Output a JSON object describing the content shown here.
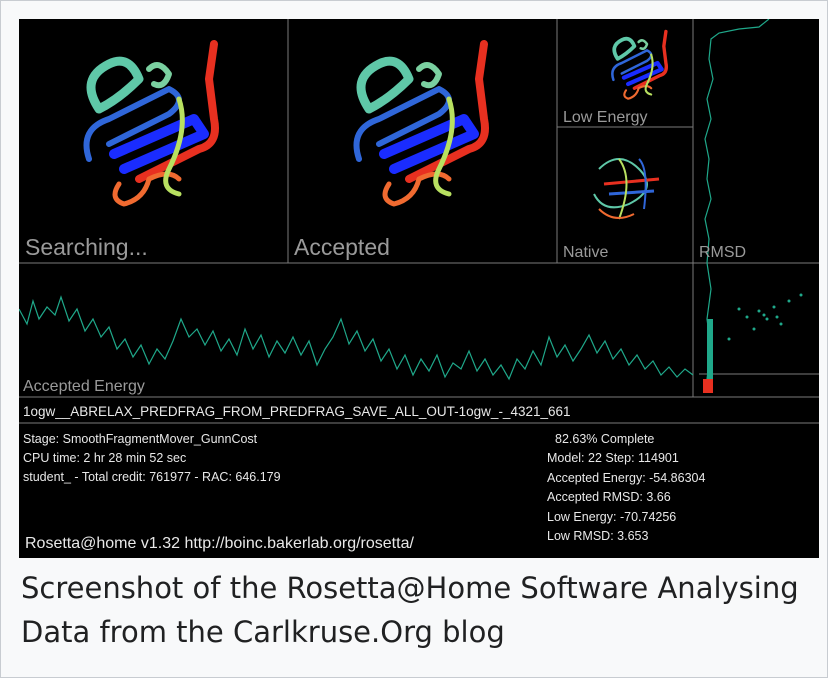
{
  "panels": {
    "searching": "Searching...",
    "accepted": "Accepted",
    "low_energy": "Low Energy",
    "native": "Native",
    "rmsd": "RMSD",
    "accepted_energy": "Accepted Energy"
  },
  "job_name": "1ogw__ABRELAX_PREDFRAG_FROM_PREDFRAG_SAVE_ALL_OUT-1ogw_-_4321_661",
  "status": {
    "left": [
      "Stage: SmoothFragmentMover_GunnCost",
      "CPU time: 2 hr 28 min 52 sec",
      "student_ - Total credit: 761977 - RAC: 646.179"
    ],
    "right": [
      "82.63% Complete",
      "Model: 22  Step: 114901",
      "Accepted Energy: -54.86304",
      "Accepted RMSD:  3.66",
      "Low Energy: -70.74256",
      "Low RMSD:  3.653"
    ]
  },
  "footer": "Rosetta@home v1.32 http://boinc.bakerlab.org/rosetta/",
  "caption": "Screenshot of the Rosetta@Home Software Analysing Data from the Carlkruse.Org blog"
}
